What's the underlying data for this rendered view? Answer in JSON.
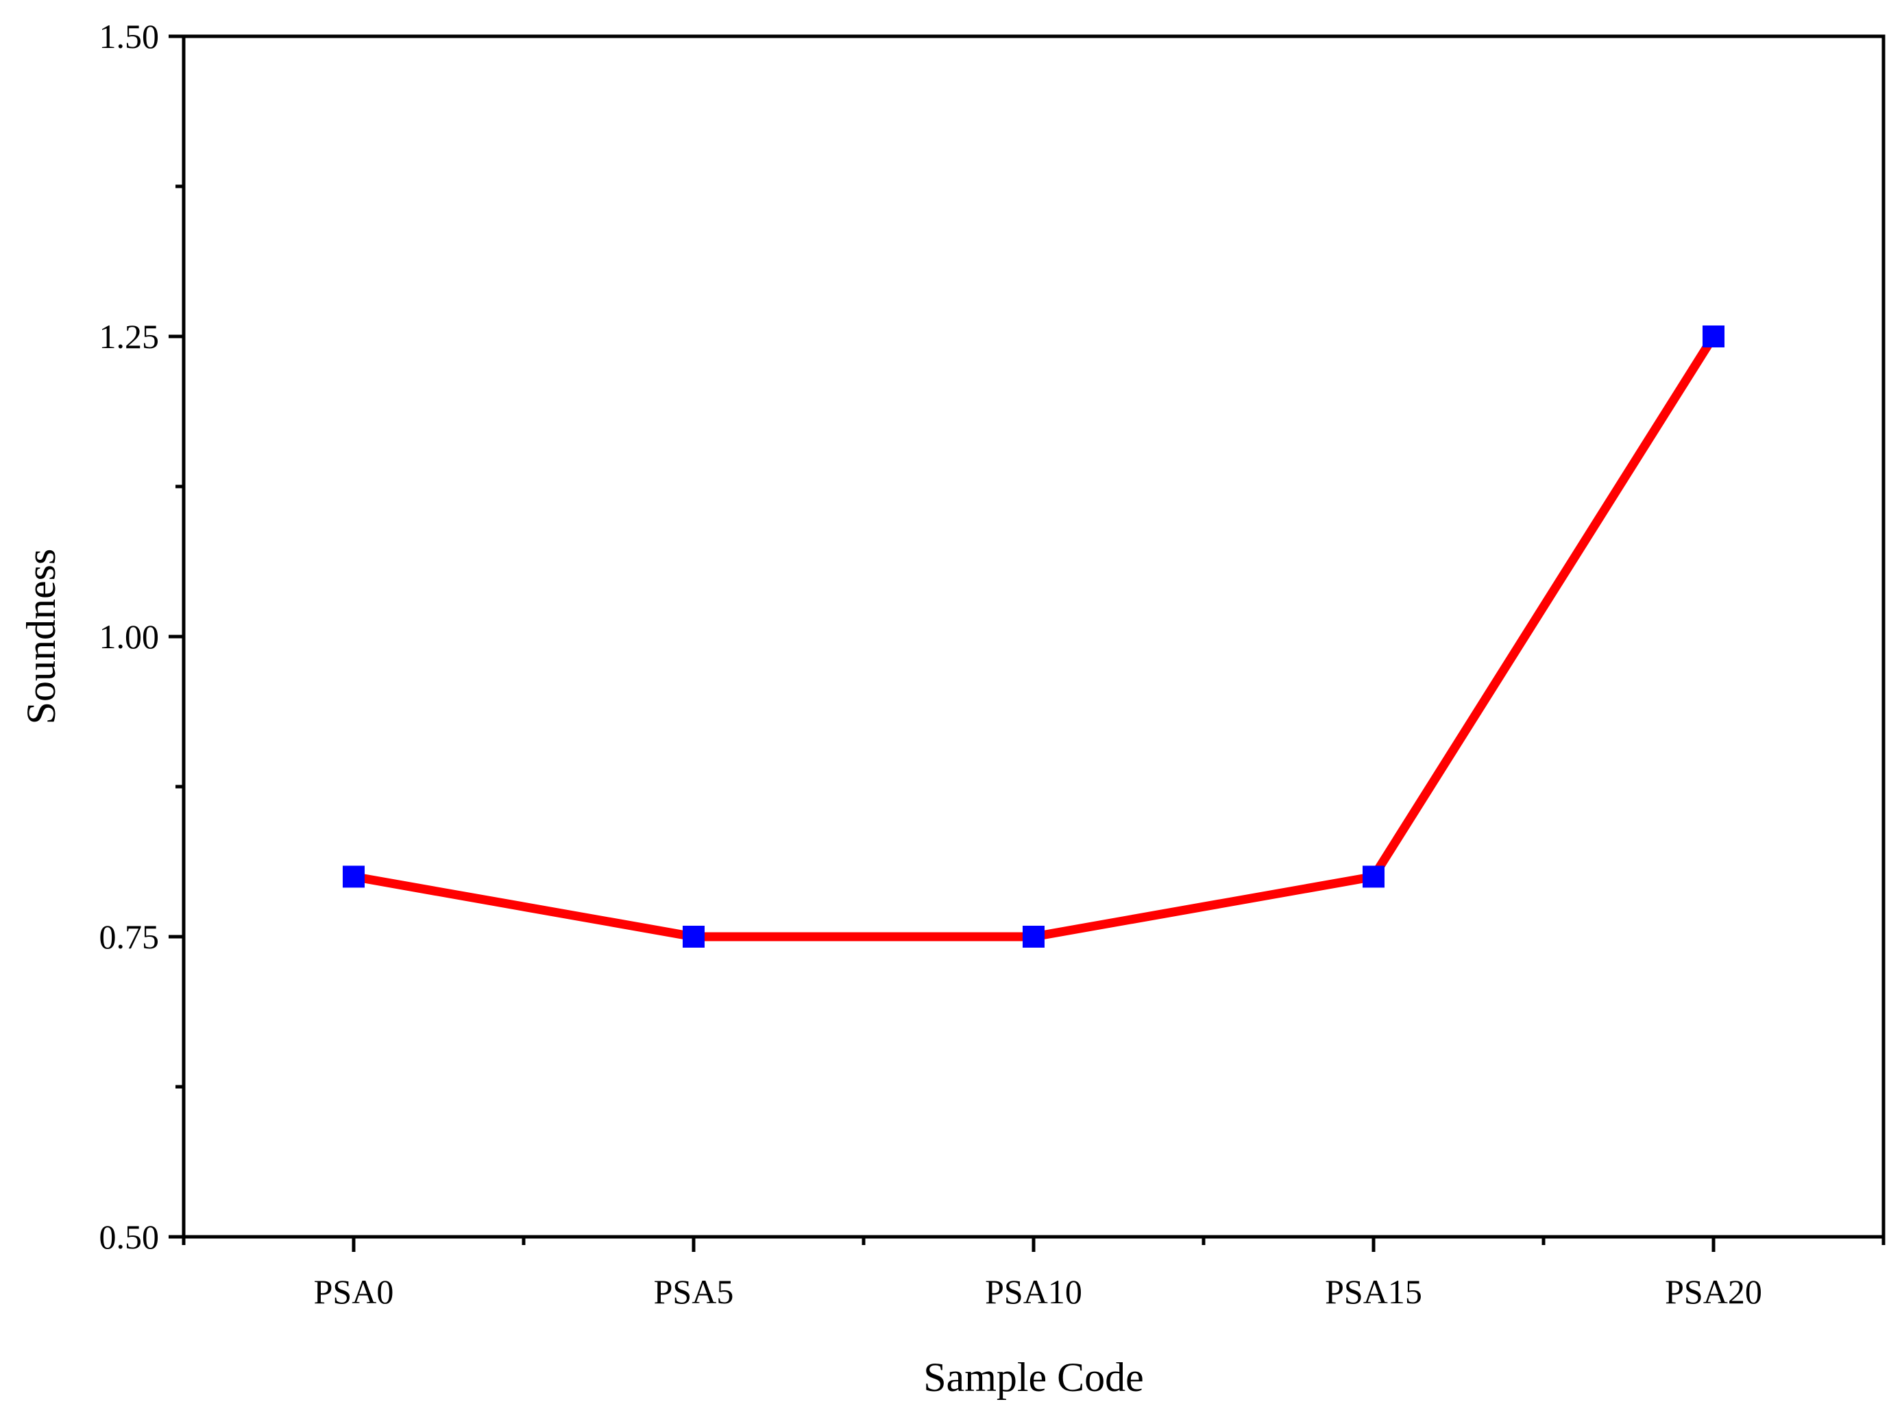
{
  "chart_data": {
    "type": "line",
    "title": "",
    "xlabel": "Sample Code",
    "ylabel": "Soundness",
    "categories": [
      "PSA0",
      "PSA5",
      "PSA10",
      "PSA15",
      "PSA20"
    ],
    "series": [
      {
        "values": [
          0.8,
          0.75,
          0.75,
          0.8,
          1.25
        ]
      }
    ],
    "ylim": [
      0.5,
      1.5
    ],
    "y_ticks": [
      "0.50",
      "0.75",
      "1.00",
      "1.25",
      "1.50"
    ],
    "grid": false,
    "legend": "none",
    "colors": {
      "line": "#ff0000",
      "marker": "#0000ff",
      "axis": "#000000"
    }
  }
}
